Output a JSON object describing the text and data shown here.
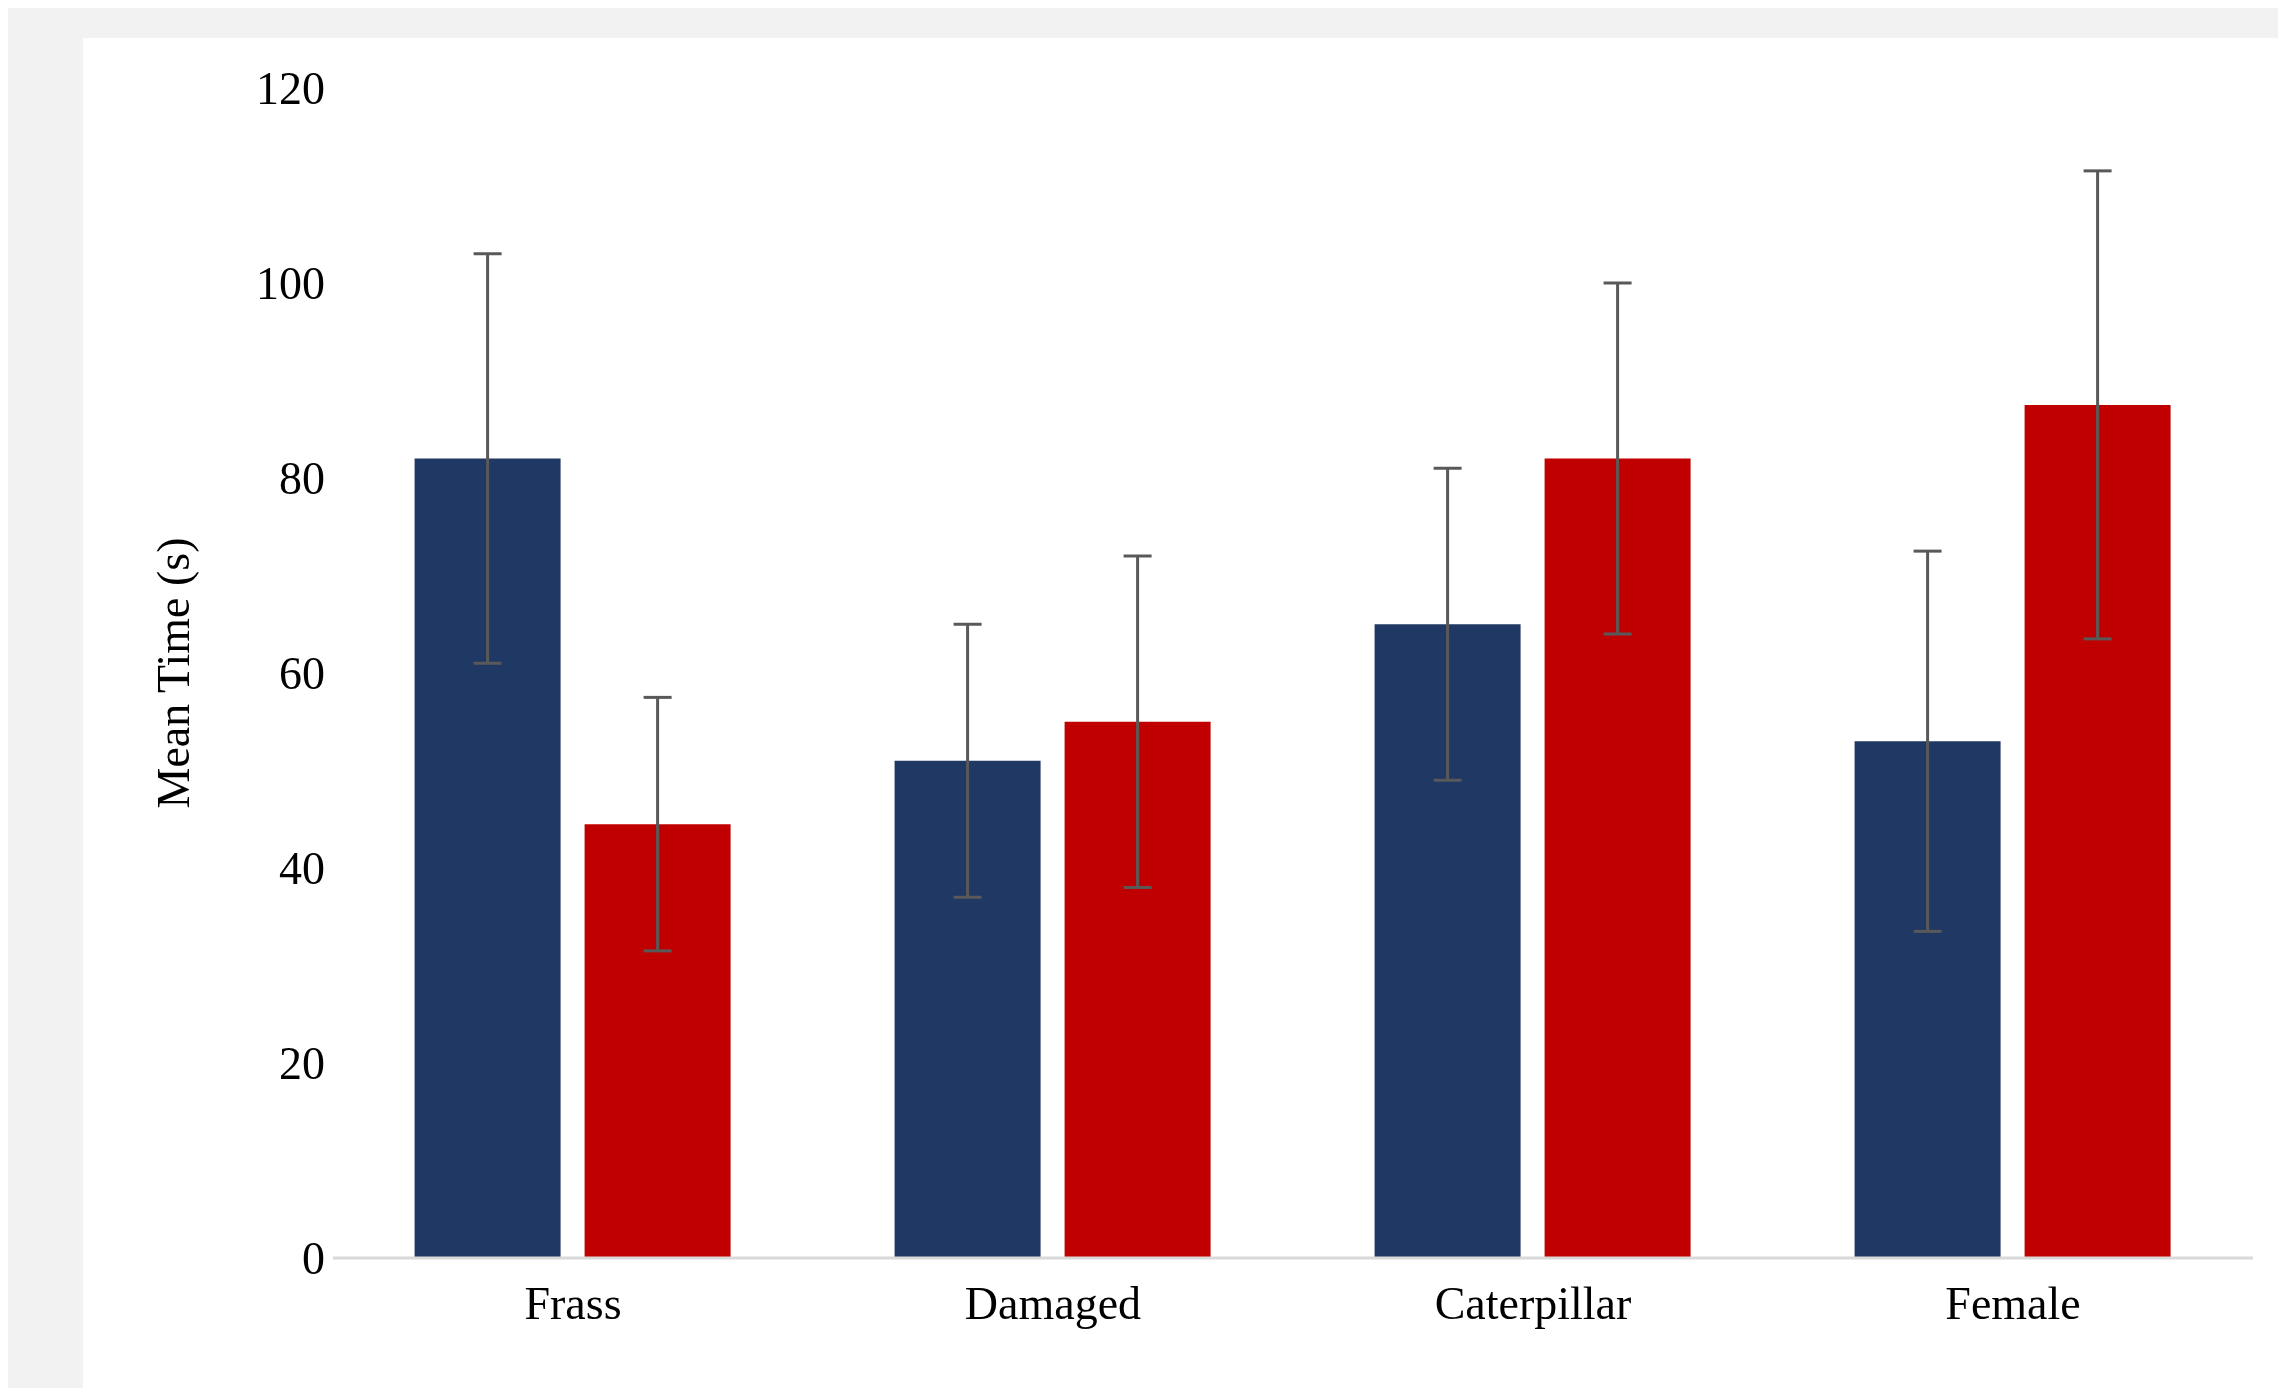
{
  "chart_data": {
    "type": "bar",
    "ylabel": "Mean Time (s)",
    "categories": [
      "Frass",
      "Damaged",
      "Caterpillar",
      "Female"
    ],
    "series": [
      {
        "color": "#203864",
        "values": [
          82,
          51,
          65,
          53
        ],
        "errors": [
          21,
          14,
          16,
          19.5
        ]
      },
      {
        "color": "#c00000",
        "values": [
          44.5,
          55,
          82,
          87.5
        ],
        "errors": [
          13,
          17,
          18,
          24
        ]
      }
    ],
    "ylim": [
      0,
      120
    ],
    "yticks": [
      0,
      20,
      40,
      60,
      80,
      100,
      120
    ],
    "grid": false,
    "legend": false
  }
}
